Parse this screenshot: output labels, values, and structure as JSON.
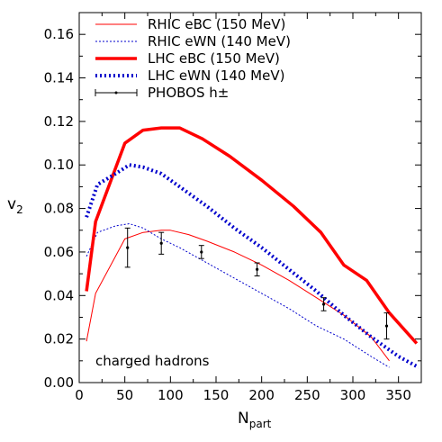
{
  "chart_data": {
    "type": "line",
    "xlabel": "N",
    "xlabel_sub": "part",
    "ylabel": "v",
    "ylabel_sub": "2",
    "xlim": [
      0,
      375
    ],
    "ylim": [
      0,
      0.17
    ],
    "xticks": [
      0,
      50,
      100,
      150,
      200,
      250,
      300,
      350
    ],
    "xtick_labels": [
      "0",
      "50",
      "100",
      "150",
      "200",
      "250",
      "300",
      "350"
    ],
    "yticks": [
      0,
      0.02,
      0.04,
      0.06,
      0.08,
      0.1,
      0.12,
      0.14,
      0.16
    ],
    "ytick_labels": [
      "0.00",
      "0.02",
      "0.04",
      "0.06",
      "0.08",
      "0.10",
      "0.12",
      "0.14",
      "0.16"
    ],
    "grid": false,
    "legend_position": "top-left",
    "annotation": "charged hadrons",
    "series": [
      {
        "name": "RHIC eBC (150 MeV)",
        "color": "#ff0000",
        "style": "thin-solid",
        "x": [
          8,
          18,
          50,
          70,
          90,
          100,
          120,
          140,
          170,
          200,
          230,
          260,
          290,
          320,
          340
        ],
        "y": [
          0.019,
          0.041,
          0.066,
          0.069,
          0.07,
          0.07,
          0.068,
          0.065,
          0.06,
          0.054,
          0.047,
          0.039,
          0.031,
          0.021,
          0.01
        ]
      },
      {
        "name": "RHIC eWN (140 MeV)",
        "color": "#0000cc",
        "style": "thin-dotted",
        "x": [
          8,
          20,
          40,
          55,
          70,
          90,
          110,
          140,
          170,
          200,
          230,
          260,
          290,
          320,
          340
        ],
        "y": [
          0.058,
          0.069,
          0.072,
          0.073,
          0.071,
          0.066,
          0.062,
          0.055,
          0.048,
          0.041,
          0.034,
          0.026,
          0.02,
          0.012,
          0.007
        ]
      },
      {
        "name": "LHC eBC (150 MeV)",
        "color": "#ff0000",
        "style": "thick-solid",
        "x": [
          8,
          18,
          50,
          70,
          90,
          110,
          135,
          165,
          200,
          235,
          265,
          290,
          315,
          340,
          370
        ],
        "y": [
          0.042,
          0.074,
          0.11,
          0.116,
          0.117,
          0.117,
          0.112,
          0.104,
          0.093,
          0.081,
          0.069,
          0.054,
          0.047,
          0.032,
          0.018
        ]
      },
      {
        "name": "LHC eWN (140 MeV)",
        "color": "#0000cc",
        "style": "thick-dotted",
        "x": [
          8,
          20,
          40,
          55,
          70,
          90,
          110,
          140,
          170,
          200,
          230,
          260,
          290,
          320,
          350,
          372
        ],
        "y": [
          0.076,
          0.091,
          0.096,
          0.1,
          0.099,
          0.096,
          0.09,
          0.081,
          0.071,
          0.062,
          0.052,
          0.042,
          0.031,
          0.021,
          0.012,
          0.007
        ]
      }
    ],
    "data_points": {
      "name": "PHOBOS h±",
      "color": "#000000",
      "points": [
        {
          "x": 53,
          "y": 0.062,
          "err": 0.009
        },
        {
          "x": 90,
          "y": 0.064,
          "err": 0.005
        },
        {
          "x": 134,
          "y": 0.06,
          "err": 0.003
        },
        {
          "x": 195,
          "y": 0.052,
          "err": 0.003
        },
        {
          "x": 268,
          "y": 0.036,
          "err": 0.003
        },
        {
          "x": 337,
          "y": 0.026,
          "err": 0.006
        }
      ]
    }
  }
}
